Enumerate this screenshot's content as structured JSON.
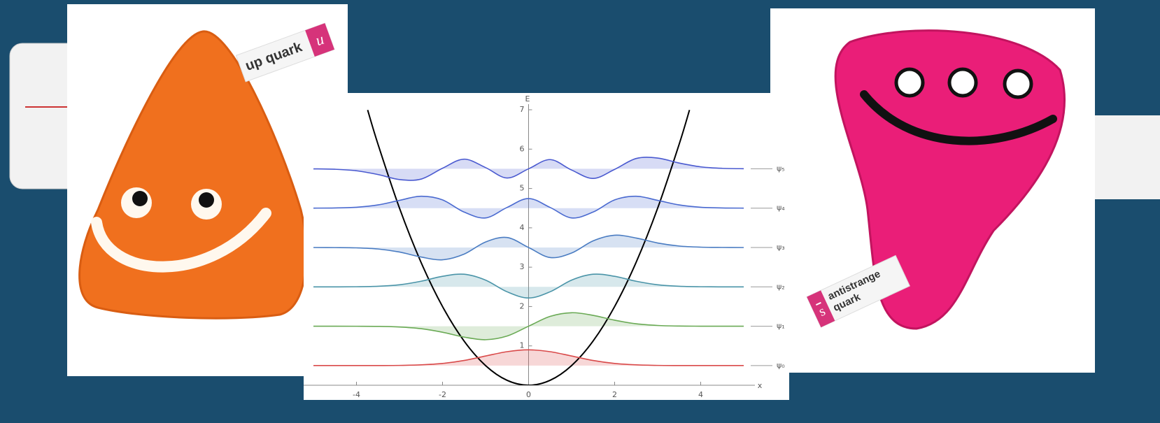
{
  "photos": [
    {
      "label": "up quark",
      "symbol": "u"
    },
    {
      "label_lines": [
        "antistrange",
        "quark"
      ],
      "symbol": "s"
    }
  ],
  "chart_data": {
    "type": "line",
    "y_label": "E",
    "x_label": "x",
    "xlim": [
      -5,
      5
    ],
    "ylim": [
      0,
      7
    ],
    "xticks": [
      -4,
      -2,
      0,
      2,
      4
    ],
    "yticks": [
      1,
      2,
      3,
      4,
      5,
      6,
      7
    ],
    "x": [
      -5,
      -4.5,
      -4,
      -3.5,
      -3,
      -2.5,
      -2,
      -1.5,
      -1,
      -0.5,
      0,
      0.5,
      1,
      1.5,
      2,
      2.5,
      3,
      3.5,
      4,
      4.5,
      5
    ],
    "potential": {
      "color": "#000000",
      "x": [
        -3.74,
        -3.5,
        -3,
        -2.5,
        -2,
        -1.5,
        -1,
        -0.5,
        0,
        0.5,
        1,
        1.5,
        2,
        2.5,
        3,
        3.5,
        3.74
      ],
      "values": [
        6.994,
        6.125,
        4.5,
        3.125,
        2,
        1.125,
        0.5,
        0.125,
        0,
        0.125,
        0.5,
        1.125,
        2,
        3.125,
        4.5,
        6.125,
        6.994
      ]
    },
    "series": [
      {
        "name": "ψ₀",
        "color": "#d94a4a",
        "baseline": 0.5,
        "values": [
          0.5,
          0.5,
          0.5,
          0.501,
          0.504,
          0.518,
          0.554,
          0.63,
          0.743,
          0.853,
          0.9,
          0.853,
          0.743,
          0.63,
          0.554,
          0.518,
          0.504,
          0.501,
          0.5,
          0.5,
          0.5
        ]
      },
      {
        "name": "ψ₁",
        "color": "#6aaa55",
        "baseline": 1.5,
        "values": [
          1.5,
          1.5,
          1.499,
          1.496,
          1.481,
          1.438,
          1.347,
          1.224,
          1.157,
          1.25,
          1.5,
          1.75,
          1.843,
          1.776,
          1.653,
          1.562,
          1.519,
          1.504,
          1.501,
          1.5,
          1.5
        ]
      },
      {
        "name": "ψ₂",
        "color": "#4a94a8",
        "baseline": 2.5,
        "values": [
          2.5,
          2.5,
          2.503,
          2.515,
          2.553,
          2.643,
          2.768,
          2.821,
          2.672,
          2.375,
          2.217,
          2.375,
          2.672,
          2.821,
          2.768,
          2.643,
          2.553,
          2.515,
          2.503,
          2.5,
          2.5
        ]
      },
      {
        "name": "ψ₃",
        "color": "#4a7cc2",
        "baseline": 3.5,
        "values": [
          3.5,
          3.498,
          3.491,
          3.462,
          3.385,
          3.259,
          3.188,
          3.331,
          3.64,
          3.755,
          3.5,
          3.245,
          3.36,
          3.669,
          3.812,
          3.741,
          3.615,
          3.538,
          3.509,
          3.502,
          3.5
        ]
      },
      {
        "name": "ψ₄",
        "color": "#4a6ad0",
        "baseline": 4.5,
        "values": [
          4.501,
          4.505,
          4.523,
          4.582,
          4.698,
          4.802,
          4.71,
          4.401,
          4.252,
          4.518,
          4.745,
          4.518,
          4.252,
          4.401,
          4.71,
          4.802,
          4.698,
          4.582,
          4.523,
          4.505,
          4.501
        ]
      },
      {
        "name": "ψ₅",
        "color": "#4a5ad0",
        "baseline": 5.5,
        "values": [
          5.498,
          5.488,
          5.45,
          5.354,
          5.227,
          5.238,
          5.514,
          5.745,
          5.531,
          5.266,
          5.5,
          5.734,
          5.469,
          5.255,
          5.486,
          5.762,
          5.773,
          5.646,
          5.55,
          5.512,
          5.502
        ]
      }
    ]
  }
}
